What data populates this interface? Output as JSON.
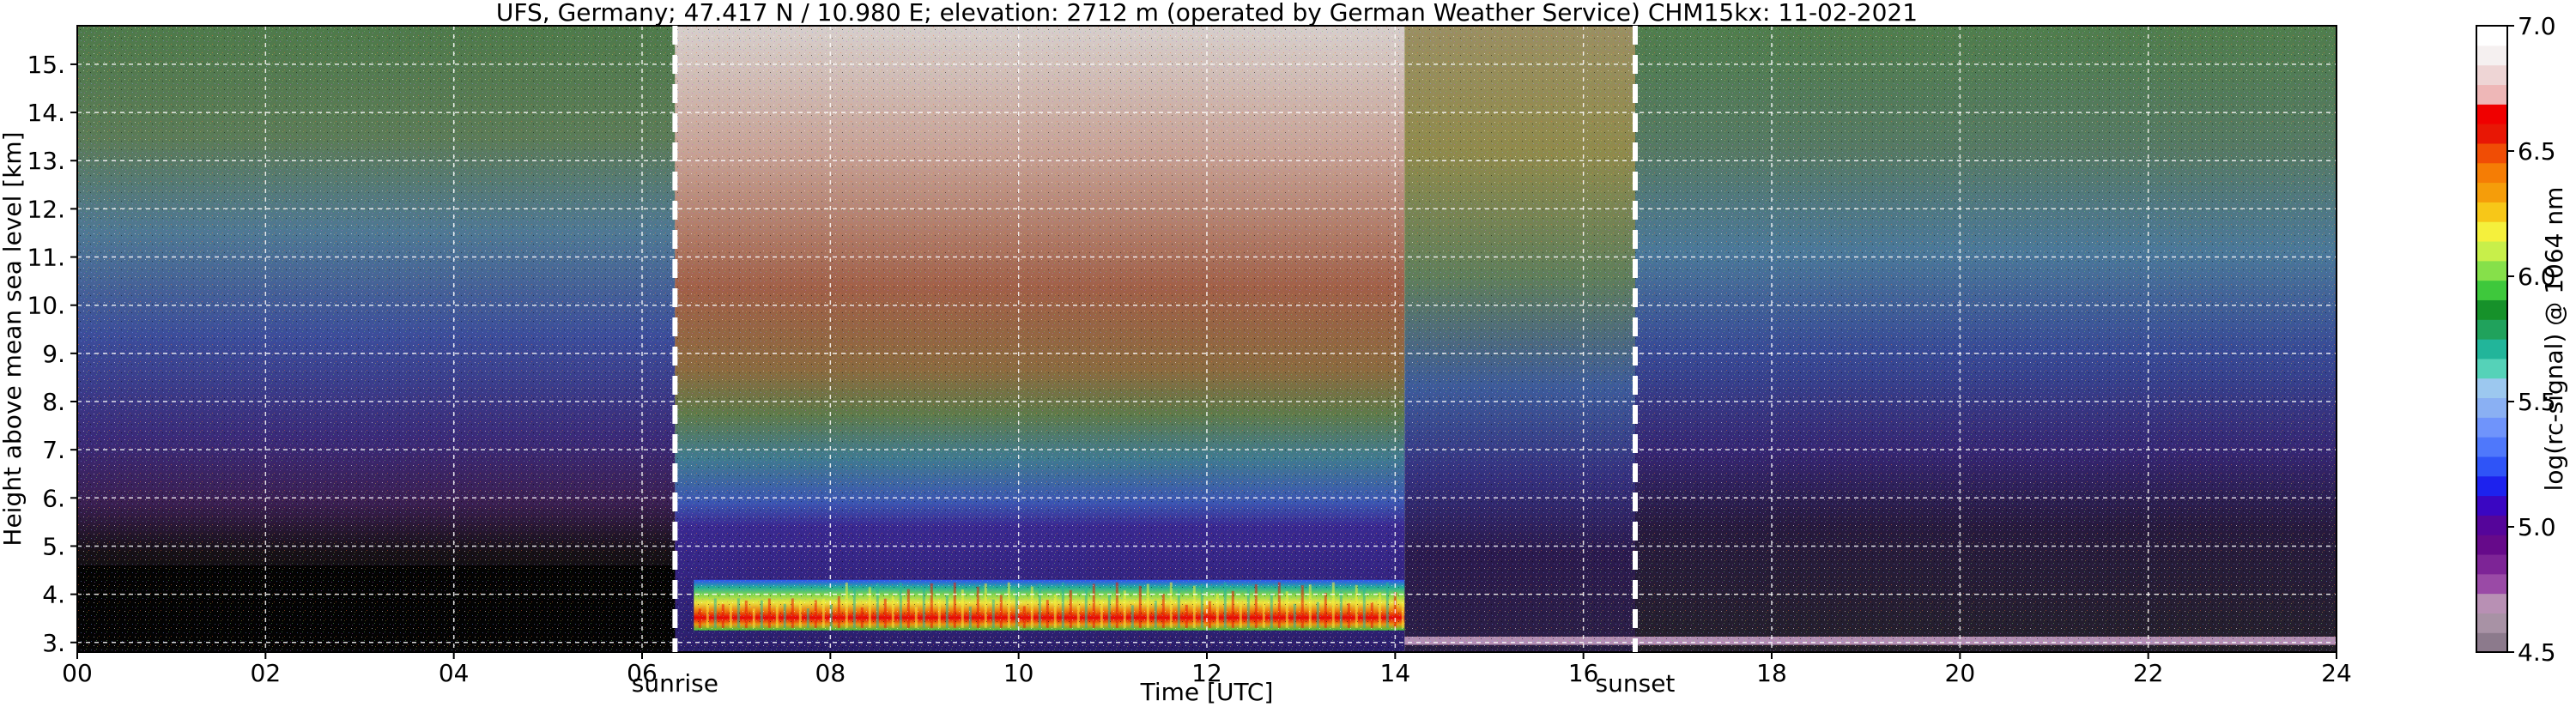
{
  "chart_data": {
    "type": "heatmap",
    "title": "UFS, Germany; 47.417 N / 10.980 E; elevation: 2712 m  (operated by German Weather Service)    CHM15kx: 11-02-2021",
    "xlabel": "Time [UTC]",
    "ylabel": "Height above mean sea level [km]",
    "xlim": [
      0,
      24
    ],
    "ylim": [
      2.8,
      15.8
    ],
    "xticks": [
      "00",
      "02",
      "04",
      "06",
      "08",
      "10",
      "12",
      "14",
      "16",
      "18",
      "20",
      "22",
      "24"
    ],
    "yticks": [
      "3.",
      "4.",
      "5.",
      "6.",
      "7.",
      "8.",
      "9.",
      "10.",
      "11.",
      "12.",
      "13.",
      "14.",
      "15."
    ],
    "grid": true,
    "markers": [
      {
        "label": "sunrise",
        "time": 6.35
      },
      {
        "label": "sunset",
        "time": 16.55
      }
    ],
    "colorbar": {
      "label": "log(rc-signal) @ 1064 nm",
      "min": 4.5,
      "max": 7.0,
      "ticks": [
        "4.5",
        "5.0",
        "5.5",
        "6.0",
        "6.5",
        "7.0"
      ],
      "colors": [
        "#8c7a8c",
        "#a892a5",
        "#b890b4",
        "#9a4aa6",
        "#7d2496",
        "#660a8a",
        "#55059a",
        "#3a06c2",
        "#1d22ee",
        "#2f54f7",
        "#4f78fb",
        "#6f94fb",
        "#8ab0f3",
        "#9cc8ef",
        "#55d2b8",
        "#22b59a",
        "#20a25c",
        "#16912a",
        "#3ec83c",
        "#86e04a",
        "#c8ef4a",
        "#f5f03c",
        "#f7c718",
        "#f59d0a",
        "#f57d05",
        "#f04d05",
        "#e81705",
        "#f00000",
        "#eeb7b7",
        "#eed5d5",
        "#f5f0f0",
        "#ffffff"
      ]
    },
    "profile_description": {
      "night_before_sunrise": "high background noise, weak signal, dark band 3-4.6 km",
      "daytime_6.4_to_14.1": "strong boundary-layer aerosol layer 3.3-4.3 km with values up to 6.6",
      "afternoon_14.1_to_16.6": "noisy, weaker signal",
      "night_after_sunset": "weak surface layer near 3.0-3.3 km"
    }
  }
}
